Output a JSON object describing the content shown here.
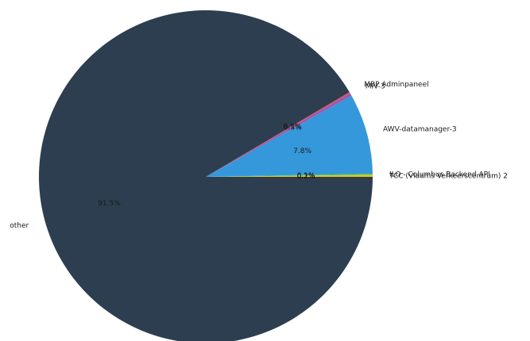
{
  "chart_data": {
    "type": "pie",
    "title": "",
    "start_angle_deg": 0,
    "direction": "counterclockwise",
    "slices": [
      {
        "label": "TCC (Vlaams Verkeerscentrum) 2",
        "value": 0.2,
        "pct_label": "0.2%",
        "color": "#f1c40f"
      },
      {
        "label": "ILO - Columbus Backend API",
        "value": 0.1,
        "pct_label": "0.1%",
        "color": "#2ecc71"
      },
      {
        "label": "AWV-datamanager-3",
        "value": 7.8,
        "pct_label": "7.8%",
        "color": "#3498db"
      },
      {
        "label": "MIV-3",
        "value": 0.3,
        "pct_label": "0.3%",
        "color": "#9b59b6"
      },
      {
        "label": "MBP Adminpaneel",
        "value": 0.1,
        "pct_label": "0.1%",
        "color": "#e74c3c"
      },
      {
        "label": "other",
        "value": 91.5,
        "pct_label": "91.5%",
        "color": "#2c3e50"
      }
    ]
  }
}
